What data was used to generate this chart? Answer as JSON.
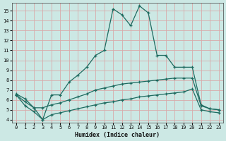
{
  "xlabel": "Humidex (Indice chaleur)",
  "bg_color": "#cce8e4",
  "grid_color": "#d8aaaa",
  "line_color": "#1e6b60",
  "xlim_min": -0.5,
  "xlim_max": 23.5,
  "ylim_min": 3.7,
  "ylim_max": 15.8,
  "yticks": [
    4,
    5,
    6,
    7,
    8,
    9,
    10,
    11,
    12,
    13,
    14,
    15
  ],
  "xticks": [
    0,
    1,
    2,
    3,
    4,
    5,
    6,
    7,
    8,
    9,
    10,
    11,
    12,
    13,
    14,
    15,
    16,
    17,
    18,
    19,
    20,
    21,
    22,
    23
  ],
  "line1_x": [
    0,
    1,
    2,
    3,
    4,
    5,
    6,
    7,
    8,
    9,
    10,
    11,
    12,
    13,
    14,
    15,
    16,
    17,
    18,
    19,
    20,
    21,
    22,
    23
  ],
  "line1_y": [
    6.6,
    6.1,
    5.2,
    4.0,
    6.5,
    6.5,
    7.8,
    8.5,
    9.3,
    10.5,
    11.0,
    15.2,
    14.6,
    13.5,
    15.5,
    14.8,
    10.5,
    10.5,
    9.3,
    9.3,
    9.3,
    5.5,
    5.1,
    5.0
  ],
  "line2_x": [
    0,
    1,
    2,
    3,
    4,
    5,
    6,
    7,
    8,
    9,
    10,
    11,
    12,
    13,
    14,
    15,
    16,
    17,
    18,
    19,
    20,
    21,
    22,
    23
  ],
  "line2_y": [
    6.5,
    5.8,
    5.2,
    5.2,
    5.5,
    5.7,
    6.0,
    6.3,
    6.6,
    7.0,
    7.2,
    7.4,
    7.6,
    7.7,
    7.8,
    7.9,
    8.0,
    8.1,
    8.2,
    8.2,
    8.2,
    5.4,
    5.1,
    5.0
  ],
  "line3_x": [
    0,
    1,
    2,
    3,
    4,
    5,
    6,
    7,
    8,
    9,
    10,
    11,
    12,
    13,
    14,
    15,
    16,
    17,
    18,
    19,
    20,
    21,
    22,
    23
  ],
  "line3_y": [
    6.5,
    5.4,
    4.8,
    4.0,
    4.5,
    4.7,
    4.9,
    5.1,
    5.3,
    5.5,
    5.7,
    5.8,
    6.0,
    6.1,
    6.3,
    6.4,
    6.5,
    6.6,
    6.7,
    6.8,
    7.1,
    5.0,
    4.8,
    4.7
  ]
}
